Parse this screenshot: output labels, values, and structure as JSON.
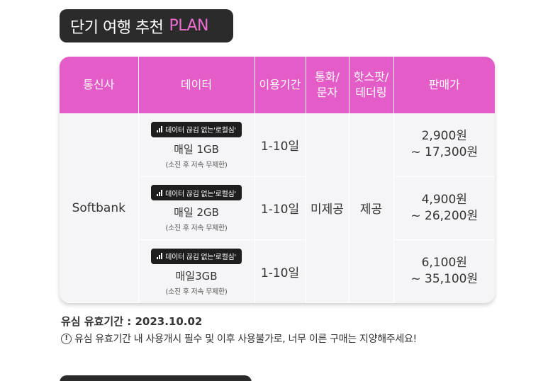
{
  "title": {
    "main": "단기 여행 추천",
    "accent": "PLAN"
  },
  "colors": {
    "header_pink": "#e45cc7",
    "accent_pink": "#ea6fd0",
    "badge_dark": "#2b2b2b"
  },
  "table": {
    "headers": {
      "carrier": "통신사",
      "data": "데이터",
      "period": "이용기간",
      "call_sms_line1": "통화/",
      "call_sms_line2": "문자",
      "hotspot_line1": "핫스팟/",
      "hotspot_line2": "테더링",
      "price": "판매가"
    },
    "carrier": "Softbank",
    "call_sms": "미제공",
    "hotspot": "제공",
    "rows": [
      {
        "badge": "데이터 끊김 없는'로컬심'",
        "daily": "매일 1GB",
        "note": "(소진 후 저속 무제한)",
        "period": "1-10일",
        "price_from": "2,900원",
        "price_to": "~ 17,300원"
      },
      {
        "badge": "데이터 끊김 없는'로컬심'",
        "daily": "매일 2GB",
        "note": "(소진 후 저속 무제한)",
        "period": "1-10일",
        "price_from": "4,900원",
        "price_to": "~ 26,200원"
      },
      {
        "badge": "데이터 끊김 없는'로컬심'",
        "daily": "매일3GB",
        "note": "(소진 후 저속 무제한)",
        "period": "1-10일",
        "price_from": "6,100원",
        "price_to": "~ 35,100원"
      }
    ]
  },
  "validity": "유심 유효기간 : 2023.10.02",
  "notice": {
    "icon": "!",
    "text": "유심 유효기간 내 사용개시 필수 및 이후 사용불가로, 너무 이른 구매는 지양해주세요!"
  }
}
